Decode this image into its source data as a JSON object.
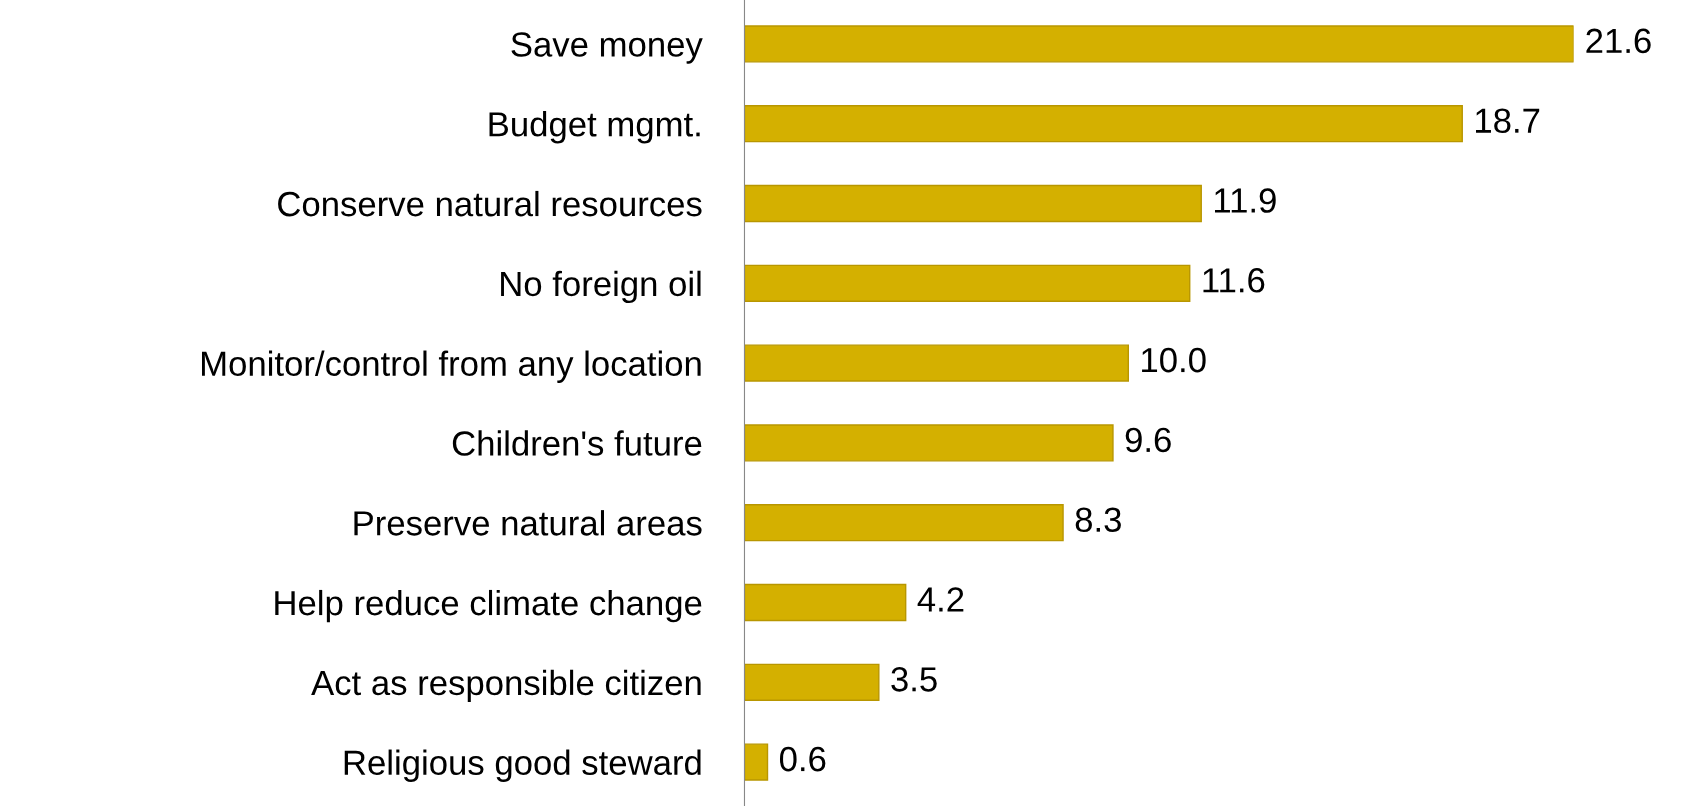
{
  "chart_data": {
    "type": "bar",
    "orientation": "horizontal",
    "data_labels": true,
    "grid": false,
    "legend": false,
    "categories": [
      "Save money",
      "Budget mgmt.",
      "Conserve natural resources",
      "No foreign oil",
      "Monitor/control from any location",
      "Children's future",
      "Preserve natural areas",
      "Help reduce climate change",
      "Act as responsible citizen",
      "Religious good steward"
    ],
    "values": [
      21.6,
      18.7,
      11.9,
      11.6,
      10.0,
      9.6,
      8.3,
      4.2,
      3.5,
      0.6
    ],
    "value_labels": [
      "21.6",
      "18.7",
      "11.9",
      "11.6",
      "10.0",
      "9.6",
      "8.3",
      "4.2",
      "3.5",
      "0.6"
    ],
    "color": "#d4b000"
  }
}
